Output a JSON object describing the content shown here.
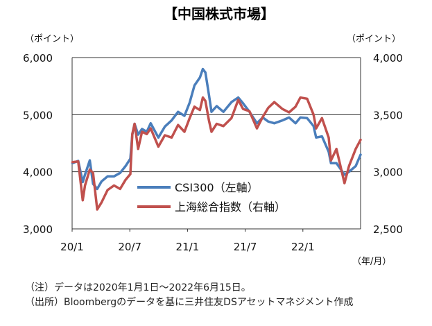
{
  "chart_data": {
    "type": "line",
    "title": "【中国株式市場】",
    "left_axis_unit": "（ポイント）",
    "right_axis_unit": "（ポイント）",
    "x_unit": "（年/月）",
    "ylim_left": [
      3000,
      6000
    ],
    "ylim_right": [
      2500,
      4000
    ],
    "yticks_left": [
      "6,000",
      "5,000",
      "4,000",
      "3,000"
    ],
    "yticks_right": [
      "4,000",
      "3,500",
      "3,000",
      "2,500"
    ],
    "x_range": [
      "2020-01-01",
      "2022-06-15"
    ],
    "xtick_labels": [
      "20/1",
      "20/7",
      "21/1",
      "21/7",
      "22/1"
    ],
    "grid": true,
    "legend_position": "center",
    "series": [
      {
        "name": "CSI300（左軸）",
        "axis": "left",
        "color": "#4a7ebb",
        "x": [
          "2020-01-02",
          "2020-01-20",
          "2020-02-03",
          "2020-02-10",
          "2020-02-25",
          "2020-03-06",
          "2020-03-19",
          "2020-04-01",
          "2020-04-20",
          "2020-05-10",
          "2020-05-29",
          "2020-06-15",
          "2020-06-30",
          "2020-07-06",
          "2020-07-13",
          "2020-07-24",
          "2020-08-05",
          "2020-08-20",
          "2020-09-01",
          "2020-09-25",
          "2020-10-15",
          "2020-11-05",
          "2020-11-25",
          "2020-12-15",
          "2020-12-31",
          "2021-01-15",
          "2021-02-01",
          "2021-02-10",
          "2021-02-18",
          "2021-03-01",
          "2021-03-09",
          "2021-03-25",
          "2021-04-15",
          "2021-05-10",
          "2021-05-31",
          "2021-06-15",
          "2021-07-05",
          "2021-07-28",
          "2021-08-15",
          "2021-09-01",
          "2021-09-20",
          "2021-10-15",
          "2021-11-05",
          "2021-11-25",
          "2021-12-10",
          "2021-12-31",
          "2022-01-20",
          "2022-01-28",
          "2022-02-15",
          "2022-03-08",
          "2022-03-15",
          "2022-04-01",
          "2022-04-26",
          "2022-05-10",
          "2022-05-31",
          "2022-06-15"
        ],
        "values": [
          4150,
          4190,
          3820,
          3950,
          4200,
          3790,
          3700,
          3830,
          3920,
          3920,
          3980,
          4100,
          4230,
          4650,
          4840,
          4650,
          4750,
          4700,
          4850,
          4600,
          4790,
          4900,
          5050,
          4980,
          5210,
          5510,
          5650,
          5800,
          5740,
          5350,
          5050,
          5150,
          5050,
          5220,
          5300,
          5200,
          5050,
          4850,
          4950,
          4880,
          4850,
          4900,
          4950,
          4850,
          4950,
          4940,
          4800,
          4600,
          4620,
          4350,
          4150,
          4150,
          3950,
          4000,
          4100,
          4300
        ]
      },
      {
        "name": "上海総合指数（右軸）",
        "axis": "right",
        "color": "#c0504d",
        "x": [
          "2020-01-02",
          "2020-01-20",
          "2020-02-03",
          "2020-02-10",
          "2020-02-25",
          "2020-03-06",
          "2020-03-19",
          "2020-04-01",
          "2020-04-20",
          "2020-05-10",
          "2020-05-29",
          "2020-06-15",
          "2020-06-30",
          "2020-07-06",
          "2020-07-13",
          "2020-07-24",
          "2020-08-05",
          "2020-08-20",
          "2020-09-01",
          "2020-09-25",
          "2020-10-15",
          "2020-11-05",
          "2020-11-25",
          "2020-12-15",
          "2020-12-31",
          "2021-01-15",
          "2021-02-01",
          "2021-02-10",
          "2021-02-18",
          "2021-03-01",
          "2021-03-09",
          "2021-03-25",
          "2021-04-15",
          "2021-05-10",
          "2021-05-31",
          "2021-06-15",
          "2021-07-05",
          "2021-07-28",
          "2021-08-15",
          "2021-09-01",
          "2021-09-20",
          "2021-10-15",
          "2021-11-05",
          "2021-11-25",
          "2021-12-10",
          "2021-12-31",
          "2022-01-20",
          "2022-01-28",
          "2022-02-15",
          "2022-03-08",
          "2022-03-15",
          "2022-04-01",
          "2022-04-26",
          "2022-05-10",
          "2022-05-31",
          "2022-06-15"
        ],
        "values": [
          3085,
          3090,
          2750,
          2880,
          3020,
          2990,
          2670,
          2730,
          2840,
          2880,
          2850,
          2930,
          2980,
          3330,
          3420,
          3200,
          3350,
          3330,
          3380,
          3220,
          3320,
          3300,
          3410,
          3350,
          3470,
          3570,
          3540,
          3650,
          3620,
          3450,
          3350,
          3420,
          3400,
          3470,
          3630,
          3550,
          3530,
          3380,
          3480,
          3560,
          3610,
          3550,
          3520,
          3570,
          3650,
          3640,
          3500,
          3380,
          3470,
          3300,
          3100,
          3200,
          2900,
          3050,
          3200,
          3280
        ]
      }
    ]
  },
  "notes": [
    "（注）データは2020年1月1日～2022年6月15日。",
    "（出所）Bloombergのデータを基に三井住友DSアセットマネジメント作成"
  ]
}
